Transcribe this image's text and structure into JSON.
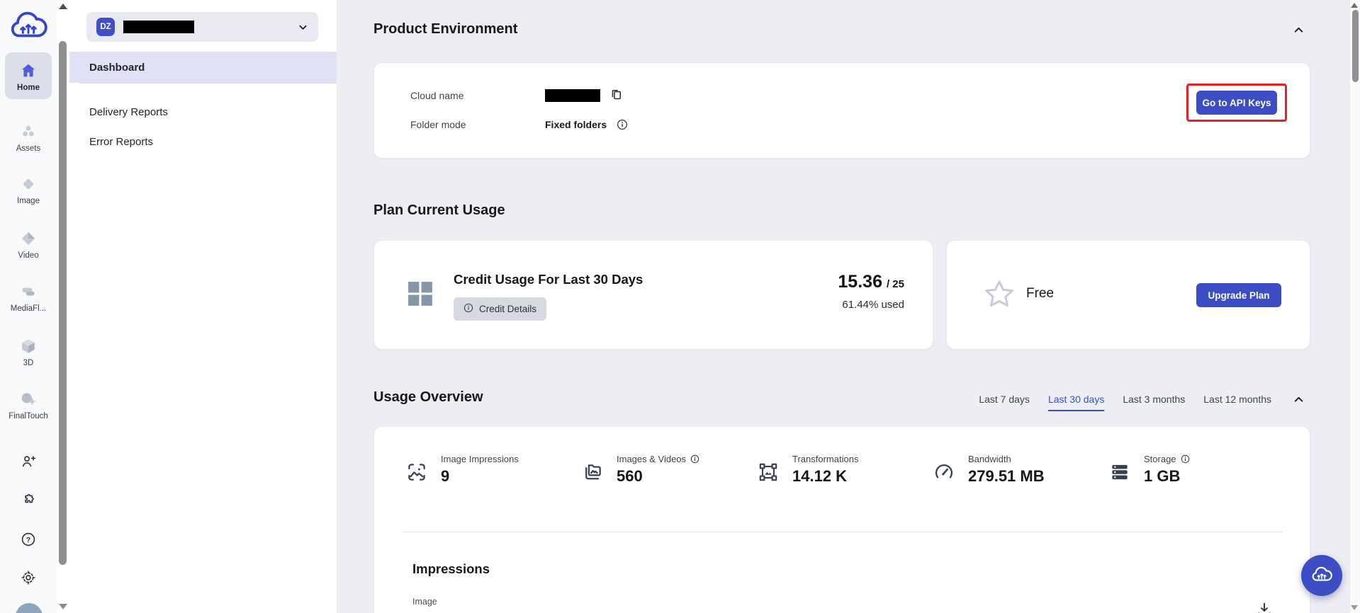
{
  "colors": {
    "accent": "#3d4ec4",
    "highlight_red": "#e52026",
    "selected_tab": "#3b4fc0",
    "main_bg": "#edeef4",
    "active_row_bg": "#dfe1f4"
  },
  "rail": {
    "items": [
      {
        "label": "Home",
        "icon": "home-icon",
        "active": true
      },
      {
        "label": "Assets",
        "icon": "assets-icon",
        "active": false
      },
      {
        "label": "Image",
        "icon": "image-icon",
        "active": false
      },
      {
        "label": "Video",
        "icon": "video-icon",
        "active": false
      },
      {
        "label": "MediaFl...",
        "icon": "mediaflows-icon",
        "active": false
      },
      {
        "label": "3D",
        "icon": "3d-icon",
        "active": false
      },
      {
        "label": "FinalTouch",
        "icon": "finaltouch-icon",
        "active": false
      }
    ],
    "bottom_icons": [
      "add-user-icon",
      "extensions-icon",
      "help-icon",
      "settings-icon"
    ]
  },
  "sidebar": {
    "env_badge": "DZ",
    "items": [
      {
        "label": "Dashboard",
        "active": true
      },
      {
        "label": "Delivery Reports",
        "active": false
      },
      {
        "label": "Error Reports",
        "active": false
      }
    ]
  },
  "product_environment": {
    "title": "Product Environment",
    "cloud_name_label": "Cloud name",
    "folder_mode_label": "Folder mode",
    "folder_mode_value": "Fixed folders",
    "api_keys_button": "Go to API Keys"
  },
  "plan_usage": {
    "title": "Plan Current Usage",
    "credit_card": {
      "title": "Credit Usage For Last 30 Days",
      "details_button": "Credit Details",
      "used": "15.36",
      "total": "/ 25",
      "percent": "61.44% used"
    },
    "plan_card": {
      "plan": "Free",
      "upgrade_button": "Upgrade Plan"
    }
  },
  "usage_overview": {
    "title": "Usage Overview",
    "ranges": [
      "Last 7 days",
      "Last 30 days",
      "Last 3 months",
      "Last 12 months"
    ],
    "selected_range": "Last 30 days",
    "stats": [
      {
        "label": "Image Impressions",
        "value": "9",
        "icon": "image-frame-icon",
        "info": false
      },
      {
        "label": "Images & Videos",
        "value": "560",
        "icon": "media-folder-icon",
        "info": true
      },
      {
        "label": "Transformations",
        "value": "14.12 K",
        "icon": "transformations-icon",
        "info": false
      },
      {
        "label": "Bandwidth",
        "value": "279.51 MB",
        "icon": "bandwidth-icon",
        "info": false
      },
      {
        "label": "Storage",
        "value": "1 GB",
        "icon": "storage-icon",
        "info": true
      }
    ],
    "impressions_title": "Impressions",
    "impressions_sublabel": "Image"
  }
}
